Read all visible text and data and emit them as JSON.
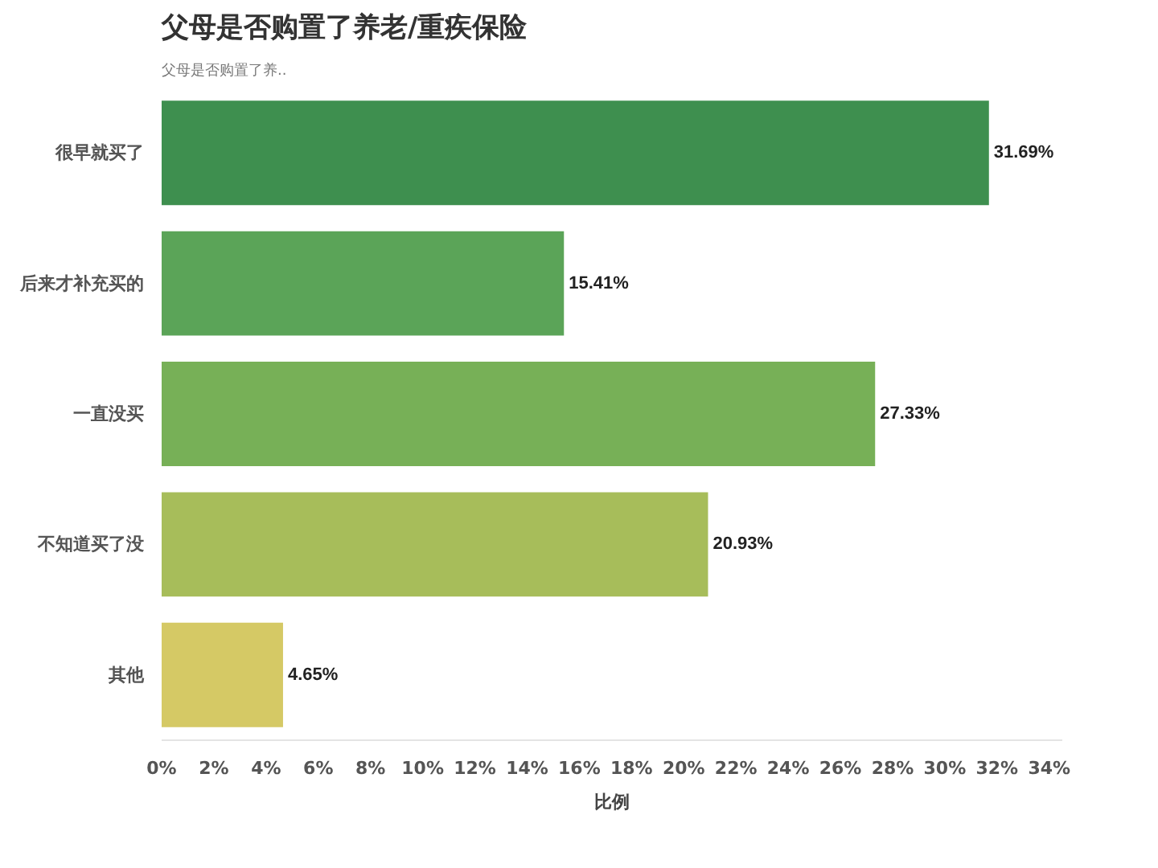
{
  "chart_data": {
    "type": "bar",
    "orientation": "horizontal",
    "title": "父母是否购置了养老/重疾保险",
    "subtitle": "父母是否购置了养..",
    "xlabel": "比例",
    "categories": [
      "很早就买了",
      "后来才补充买的",
      "一直没买",
      "不知道买了没",
      "其他"
    ],
    "values": [
      31.69,
      15.41,
      27.33,
      20.93,
      4.65
    ],
    "colors": [
      "#3e8f4f",
      "#5ba458",
      "#77b057",
      "#a7bd5a",
      "#d5c965"
    ],
    "value_labels": [
      "31.69%",
      "15.41%",
      "27.33%",
      "20.93%",
      "4.65%"
    ],
    "xlim": [
      0,
      34.5
    ],
    "xticks": [
      {
        "value": 0,
        "label": "0%"
      },
      {
        "value": 2,
        "label": "2%"
      },
      {
        "value": 4,
        "label": "4%"
      },
      {
        "value": 6,
        "label": "6%"
      },
      {
        "value": 8,
        "label": "8%"
      },
      {
        "value": 10,
        "label": "10%"
      },
      {
        "value": 12,
        "label": "12%"
      },
      {
        "value": 14,
        "label": "14%"
      },
      {
        "value": 16,
        "label": "16%"
      },
      {
        "value": 18,
        "label": "18%"
      },
      {
        "value": 20,
        "label": "20%"
      },
      {
        "value": 22,
        "label": "22%"
      },
      {
        "value": 24,
        "label": "24%"
      },
      {
        "value": 26,
        "label": "26%"
      },
      {
        "value": 28,
        "label": "28%"
      },
      {
        "value": 30,
        "label": "30%"
      },
      {
        "value": 32,
        "label": "32%"
      },
      {
        "value": 34,
        "label": "34%"
      }
    ],
    "grid": false
  }
}
